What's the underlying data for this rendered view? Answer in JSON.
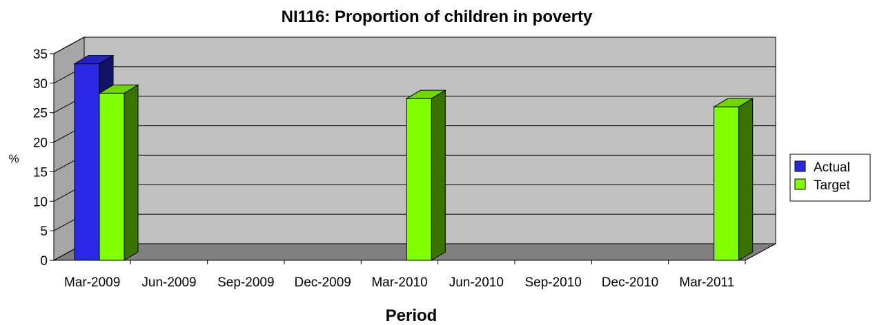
{
  "chart_data": {
    "type": "bar",
    "title": "NI116: Proportion of children in poverty",
    "xlabel": "Period",
    "ylabel": "%",
    "ylim": [
      0,
      35
    ],
    "yticks": [
      0,
      5,
      10,
      15,
      20,
      25,
      30,
      35
    ],
    "grid": true,
    "legend_position": "right",
    "categories": [
      "Mar-2009",
      "Jun-2009",
      "Sep-2009",
      "Dec-2009",
      "Mar-2010",
      "Jun-2010",
      "Sep-2010",
      "Dec-2010",
      "Mar-2011"
    ],
    "series": [
      {
        "name": "Actual",
        "color": "#2a2ae6",
        "values": [
          33.3,
          null,
          null,
          null,
          null,
          null,
          null,
          null,
          null
        ]
      },
      {
        "name": "Target",
        "color": "#80ff00",
        "values": [
          28.3,
          null,
          null,
          null,
          27.4,
          null,
          null,
          null,
          26.0
        ]
      }
    ]
  }
}
